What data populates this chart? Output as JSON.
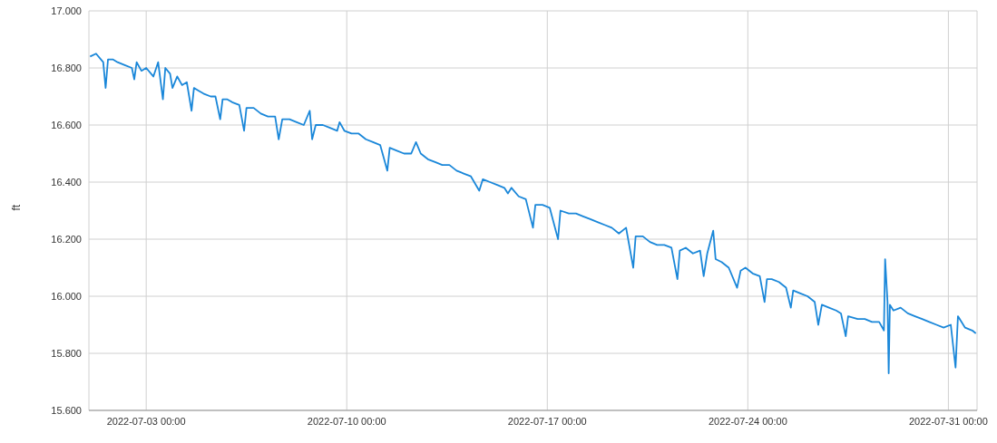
{
  "chart_data": {
    "type": "line",
    "ylabel": "ft",
    "color": "#1a87d9",
    "grid": true,
    "xlim": [
      "2022-07-01T00:00",
      "2022-08-01T00:00"
    ],
    "xticks": [
      {
        "value": "2022-07-03T00:00",
        "label": "2022-07-03 00:00"
      },
      {
        "value": "2022-07-10T00:00",
        "label": "2022-07-10 00:00"
      },
      {
        "value": "2022-07-17T00:00",
        "label": "2022-07-17 00:00"
      },
      {
        "value": "2022-07-24T00:00",
        "label": "2022-07-24 00:00"
      },
      {
        "value": "2022-07-31T00:00",
        "label": "2022-07-31 00:00"
      }
    ],
    "ylim": [
      15.6,
      17
    ],
    "yticks": [
      {
        "value": 15.6,
        "label": "15.600"
      },
      {
        "value": 15.8,
        "label": "15.800"
      },
      {
        "value": 16,
        "label": "16.000"
      },
      {
        "value": 16.2,
        "label": "16.200"
      },
      {
        "value": 16.4,
        "label": "16.400"
      },
      {
        "value": 16.6,
        "label": "16.600"
      },
      {
        "value": 16.8,
        "label": "16.800"
      },
      {
        "value": 17,
        "label": "17.000"
      }
    ],
    "x": [
      "2022-07-01T01:00",
      "2022-07-01T06:00",
      "2022-07-01T12:00",
      "2022-07-01T14:00",
      "2022-07-01T16:00",
      "2022-07-01T20:00",
      "2022-07-02T00:00",
      "2022-07-02T06:00",
      "2022-07-02T12:00",
      "2022-07-02T14:00",
      "2022-07-02T16:00",
      "2022-07-02T20:00",
      "2022-07-03T00:00",
      "2022-07-03T06:00",
      "2022-07-03T10:00",
      "2022-07-03T14:00",
      "2022-07-03T16:00",
      "2022-07-03T20:00",
      "2022-07-03T22:00",
      "2022-07-04T02:00",
      "2022-07-04T06:00",
      "2022-07-04T10:00",
      "2022-07-04T14:00",
      "2022-07-04T16:00",
      "2022-07-04T20:00",
      "2022-07-05T00:00",
      "2022-07-05T06:00",
      "2022-07-05T10:00",
      "2022-07-05T14:00",
      "2022-07-05T16:00",
      "2022-07-05T20:00",
      "2022-07-06T00:00",
      "2022-07-06T06:00",
      "2022-07-06T10:00",
      "2022-07-06T12:00",
      "2022-07-06T18:00",
      "2022-07-07T00:00",
      "2022-07-07T06:00",
      "2022-07-07T12:00",
      "2022-07-07T15:00",
      "2022-07-07T18:00",
      "2022-07-08T00:00",
      "2022-07-08T06:00",
      "2022-07-08T12:00",
      "2022-07-08T17:00",
      "2022-07-08T19:00",
      "2022-07-08T22:00",
      "2022-07-09T04:00",
      "2022-07-09T10:00",
      "2022-07-09T16:00",
      "2022-07-09T18:00",
      "2022-07-09T22:00",
      "2022-07-10T04:00",
      "2022-07-10T10:00",
      "2022-07-10T16:00",
      "2022-07-10T22:00",
      "2022-07-11T04:00",
      "2022-07-11T10:00",
      "2022-07-11T12:00",
      "2022-07-11T18:00",
      "2022-07-12T00:00",
      "2022-07-12T06:00",
      "2022-07-12T10:00",
      "2022-07-12T14:00",
      "2022-07-12T20:00",
      "2022-07-13T02:00",
      "2022-07-13T08:00",
      "2022-07-13T14:00",
      "2022-07-13T20:00",
      "2022-07-14T02:00",
      "2022-07-14T08:00",
      "2022-07-14T15:00",
      "2022-07-14T18:00",
      "2022-07-15T00:00",
      "2022-07-15T06:00",
      "2022-07-15T12:00",
      "2022-07-15T15:00",
      "2022-07-15T18:00",
      "2022-07-16T00:00",
      "2022-07-16T06:00",
      "2022-07-16T12:00",
      "2022-07-16T14:00",
      "2022-07-16T20:00",
      "2022-07-17T02:00",
      "2022-07-17T09:00",
      "2022-07-17T11:00",
      "2022-07-17T18:00",
      "2022-07-18T00:00",
      "2022-07-18T06:00",
      "2022-07-18T12:00",
      "2022-07-18T18:00",
      "2022-07-19T00:00",
      "2022-07-19T06:00",
      "2022-07-19T12:00",
      "2022-07-19T18:00",
      "2022-07-20T00:00",
      "2022-07-20T02:00",
      "2022-07-20T08:00",
      "2022-07-20T14:00",
      "2022-07-20T20:00",
      "2022-07-21T02:00",
      "2022-07-21T08:00",
      "2022-07-21T13:00",
      "2022-07-21T15:00",
      "2022-07-21T20:00",
      "2022-07-22T02:00",
      "2022-07-22T08:00",
      "2022-07-22T11:00",
      "2022-07-22T14:00",
      "2022-07-22T19:00",
      "2022-07-22T21:00",
      "2022-07-23T02:00",
      "2022-07-23T08:00",
      "2022-07-23T15:00",
      "2022-07-23T18:00",
      "2022-07-23T22:00",
      "2022-07-24T04:00",
      "2022-07-24T10:00",
      "2022-07-24T14:00",
      "2022-07-24T16:00",
      "2022-07-24T20:00",
      "2022-07-25T02:00",
      "2022-07-25T08:00",
      "2022-07-25T12:00",
      "2022-07-25T14:00",
      "2022-07-25T20:00",
      "2022-07-26T02:00",
      "2022-07-26T08:00",
      "2022-07-26T11:00",
      "2022-07-26T14:00",
      "2022-07-26T20:00",
      "2022-07-27T02:00",
      "2022-07-27T06:00",
      "2022-07-27T10:00",
      "2022-07-27T12:00",
      "2022-07-27T20:00",
      "2022-07-28T02:00",
      "2022-07-28T08:00",
      "2022-07-28T14:00",
      "2022-07-28T18:00",
      "2022-07-28T19:00",
      "2022-07-28T21:00",
      "2022-07-28T22:00",
      "2022-07-28T23:00",
      "2022-07-29T02:00",
      "2022-07-29T08:00",
      "2022-07-29T14:00",
      "2022-07-29T20:00",
      "2022-07-30T02:00",
      "2022-07-30T08:00",
      "2022-07-30T14:00",
      "2022-07-30T20:00",
      "2022-07-31T02:00",
      "2022-07-31T06:00",
      "2022-07-31T08:00",
      "2022-07-31T14:00",
      "2022-07-31T20:00",
      "2022-07-31T23:00"
    ],
    "values": [
      16.84,
      16.85,
      16.82,
      16.73,
      16.83,
      16.83,
      16.82,
      16.81,
      16.8,
      16.76,
      16.82,
      16.79,
      16.8,
      16.77,
      16.82,
      16.69,
      16.8,
      16.78,
      16.73,
      16.77,
      16.74,
      16.75,
      16.65,
      16.73,
      16.72,
      16.71,
      16.7,
      16.7,
      16.62,
      16.69,
      16.69,
      16.68,
      16.67,
      16.58,
      16.66,
      16.66,
      16.64,
      16.63,
      16.63,
      16.55,
      16.62,
      16.62,
      16.61,
      16.6,
      16.65,
      16.55,
      16.6,
      16.6,
      16.59,
      16.58,
      16.61,
      16.58,
      16.57,
      16.57,
      16.55,
      16.54,
      16.53,
      16.44,
      16.52,
      16.51,
      16.5,
      16.5,
      16.54,
      16.5,
      16.48,
      16.47,
      16.46,
      16.46,
      16.44,
      16.43,
      16.42,
      16.37,
      16.41,
      16.4,
      16.39,
      16.38,
      16.36,
      16.38,
      16.35,
      16.34,
      16.24,
      16.32,
      16.32,
      16.31,
      16.2,
      16.3,
      16.29,
      16.29,
      16.28,
      16.27,
      16.26,
      16.25,
      16.24,
      16.22,
      16.24,
      16.1,
      16.21,
      16.21,
      16.19,
      16.18,
      16.18,
      16.17,
      16.06,
      16.16,
      16.17,
      16.15,
      16.16,
      16.07,
      16.15,
      16.23,
      16.13,
      16.12,
      16.1,
      16.03,
      16.09,
      16.1,
      16.08,
      16.07,
      15.98,
      16.06,
      16.06,
      16.05,
      16.03,
      15.96,
      16.02,
      16.01,
      16,
      15.98,
      15.9,
      15.97,
      15.96,
      15.95,
      15.94,
      15.86,
      15.93,
      15.92,
      15.92,
      15.91,
      15.91,
      15.88,
      16.13,
      15.98,
      15.73,
      15.97,
      15.95,
      15.96,
      15.94,
      15.93,
      15.92,
      15.91,
      15.9,
      15.89,
      15.9,
      15.75,
      15.93,
      15.89,
      15.88,
      15.87
    ]
  }
}
